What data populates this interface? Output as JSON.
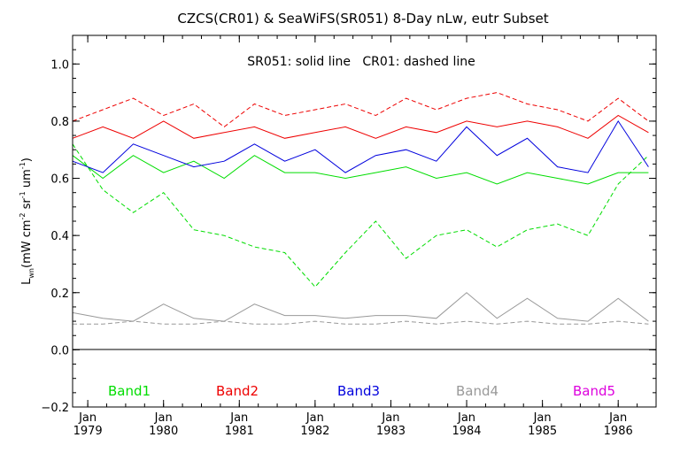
{
  "chart_data": {
    "type": "line",
    "title": "CZCS(CR01) & SeaWiFS(SR051) 8-Day nLw, eutr Subset",
    "annotation": "SR051: solid line   CR01: dashed line",
    "ylabel": "L_wn (mW cm^-2 sr^-1 um^-1)",
    "ylabel_parts": {
      "main": "L",
      "sub": "wn",
      "units": "(mW cm",
      "e1": "-2",
      "sr": " sr",
      "e2": "-1",
      "um": " um",
      "e3": "-1",
      "close": ")"
    },
    "ylim": [
      -0.2,
      1.1
    ],
    "xlim": [
      1978.8,
      1986.5
    ],
    "yticks": [
      -0.2,
      0.0,
      0.2,
      0.4,
      0.6,
      0.8,
      1.0
    ],
    "ytick_labels": [
      "−0.2",
      "0.0",
      "0.2",
      "0.4",
      "0.6",
      "0.8",
      "1.0"
    ],
    "xticks": [
      {
        "year": 1979,
        "month": "Jan",
        "label": "1979"
      },
      {
        "year": 1980,
        "month": "Jan",
        "label": "1980"
      },
      {
        "year": 1981,
        "month": "Jan",
        "label": "1981"
      },
      {
        "year": 1982,
        "month": "Jan",
        "label": "1982"
      },
      {
        "year": 1983,
        "month": "Jan",
        "label": "1983"
      },
      {
        "year": 1984,
        "month": "Jan",
        "label": "1984"
      },
      {
        "year": 1985,
        "month": "Jan",
        "label": "1985"
      },
      {
        "year": 1986,
        "month": "Jan",
        "label": "1986"
      }
    ],
    "zero_line": 0.0,
    "grid": false,
    "legend": [
      {
        "label": "Band1",
        "color": "#00dd00"
      },
      {
        "label": "Band2",
        "color": "#ee0000"
      },
      {
        "label": "Band3",
        "color": "#0000dd"
      },
      {
        "label": "Band4",
        "color": "#999999"
      },
      {
        "label": "Band5",
        "color": "#dd00dd"
      }
    ],
    "series": [
      {
        "name": "Band1",
        "style": "solid",
        "color": "#00dd00",
        "x": [
          1978.8,
          1979.2,
          1979.6,
          1980.0,
          1980.4,
          1980.8,
          1981.2,
          1981.6,
          1982.0,
          1982.4,
          1982.8,
          1983.2,
          1983.6,
          1984.0,
          1984.4,
          1984.8,
          1985.2,
          1985.6,
          1986.0,
          1986.4
        ],
        "y": [
          0.68,
          0.6,
          0.68,
          0.62,
          0.66,
          0.6,
          0.68,
          0.62,
          0.62,
          0.6,
          0.62,
          0.64,
          0.6,
          0.62,
          0.58,
          0.62,
          0.6,
          0.58,
          0.62,
          0.62
        ]
      },
      {
        "name": "Band1",
        "style": "dashed",
        "color": "#00dd00",
        "x": [
          1978.8,
          1979.2,
          1979.6,
          1980.0,
          1980.4,
          1980.8,
          1981.2,
          1981.6,
          1982.0,
          1982.4,
          1982.8,
          1983.2,
          1983.6,
          1984.0,
          1984.4,
          1984.8,
          1985.2,
          1985.6,
          1986.0,
          1986.4
        ],
        "y": [
          0.72,
          0.56,
          0.48,
          0.55,
          0.42,
          0.4,
          0.36,
          0.34,
          0.22,
          0.34,
          0.45,
          0.32,
          0.4,
          0.42,
          0.36,
          0.42,
          0.44,
          0.4,
          0.58,
          0.68
        ]
      },
      {
        "name": "Band2",
        "style": "solid",
        "color": "#ee0000",
        "x": [
          1978.8,
          1979.2,
          1979.6,
          1980.0,
          1980.4,
          1980.8,
          1981.2,
          1981.6,
          1982.0,
          1982.4,
          1982.8,
          1983.2,
          1983.6,
          1984.0,
          1984.4,
          1984.8,
          1985.2,
          1985.6,
          1986.0,
          1986.4
        ],
        "y": [
          0.74,
          0.78,
          0.74,
          0.8,
          0.74,
          0.76,
          0.78,
          0.74,
          0.76,
          0.78,
          0.74,
          0.78,
          0.76,
          0.8,
          0.78,
          0.8,
          0.78,
          0.74,
          0.82,
          0.76
        ]
      },
      {
        "name": "Band2",
        "style": "dashed",
        "color": "#ee0000",
        "x": [
          1978.8,
          1979.2,
          1979.6,
          1980.0,
          1980.4,
          1980.8,
          1981.2,
          1981.6,
          1982.0,
          1982.4,
          1982.8,
          1983.2,
          1983.6,
          1984.0,
          1984.4,
          1984.8,
          1985.2,
          1985.6,
          1986.0,
          1986.4
        ],
        "y": [
          0.8,
          0.84,
          0.88,
          0.82,
          0.86,
          0.78,
          0.86,
          0.82,
          0.84,
          0.86,
          0.82,
          0.88,
          0.84,
          0.88,
          0.9,
          0.86,
          0.84,
          0.8,
          0.88,
          0.8
        ]
      },
      {
        "name": "Band3",
        "style": "solid",
        "color": "#0000dd",
        "x": [
          1978.8,
          1979.2,
          1979.6,
          1980.0,
          1980.4,
          1980.8,
          1981.2,
          1981.6,
          1982.0,
          1982.4,
          1982.8,
          1983.2,
          1983.6,
          1984.0,
          1984.4,
          1984.8,
          1985.2,
          1985.6,
          1986.0,
          1986.4
        ],
        "y": [
          0.66,
          0.62,
          0.72,
          0.68,
          0.64,
          0.66,
          0.72,
          0.66,
          0.7,
          0.62,
          0.68,
          0.7,
          0.66,
          0.78,
          0.68,
          0.74,
          0.64,
          0.62,
          0.8,
          0.64
        ]
      },
      {
        "name": "Band4",
        "style": "solid",
        "color": "#999999",
        "x": [
          1978.8,
          1979.2,
          1979.6,
          1980.0,
          1980.4,
          1980.8,
          1981.2,
          1981.6,
          1982.0,
          1982.4,
          1982.8,
          1983.2,
          1983.6,
          1984.0,
          1984.4,
          1984.8,
          1985.2,
          1985.6,
          1986.0,
          1986.4
        ],
        "y": [
          0.13,
          0.11,
          0.1,
          0.16,
          0.11,
          0.1,
          0.16,
          0.12,
          0.12,
          0.11,
          0.12,
          0.12,
          0.11,
          0.2,
          0.11,
          0.18,
          0.11,
          0.1,
          0.18,
          0.1
        ]
      },
      {
        "name": "Band4",
        "style": "dashed",
        "color": "#999999",
        "x": [
          1978.8,
          1979.2,
          1979.6,
          1980.0,
          1980.4,
          1980.8,
          1981.2,
          1981.6,
          1982.0,
          1982.4,
          1982.8,
          1983.2,
          1983.6,
          1984.0,
          1984.4,
          1984.8,
          1985.2,
          1985.6,
          1986.0,
          1986.4
        ],
        "y": [
          0.09,
          0.09,
          0.1,
          0.09,
          0.09,
          0.1,
          0.09,
          0.09,
          0.1,
          0.09,
          0.09,
          0.1,
          0.09,
          0.1,
          0.09,
          0.1,
          0.09,
          0.09,
          0.1,
          0.09
        ]
      }
    ]
  }
}
